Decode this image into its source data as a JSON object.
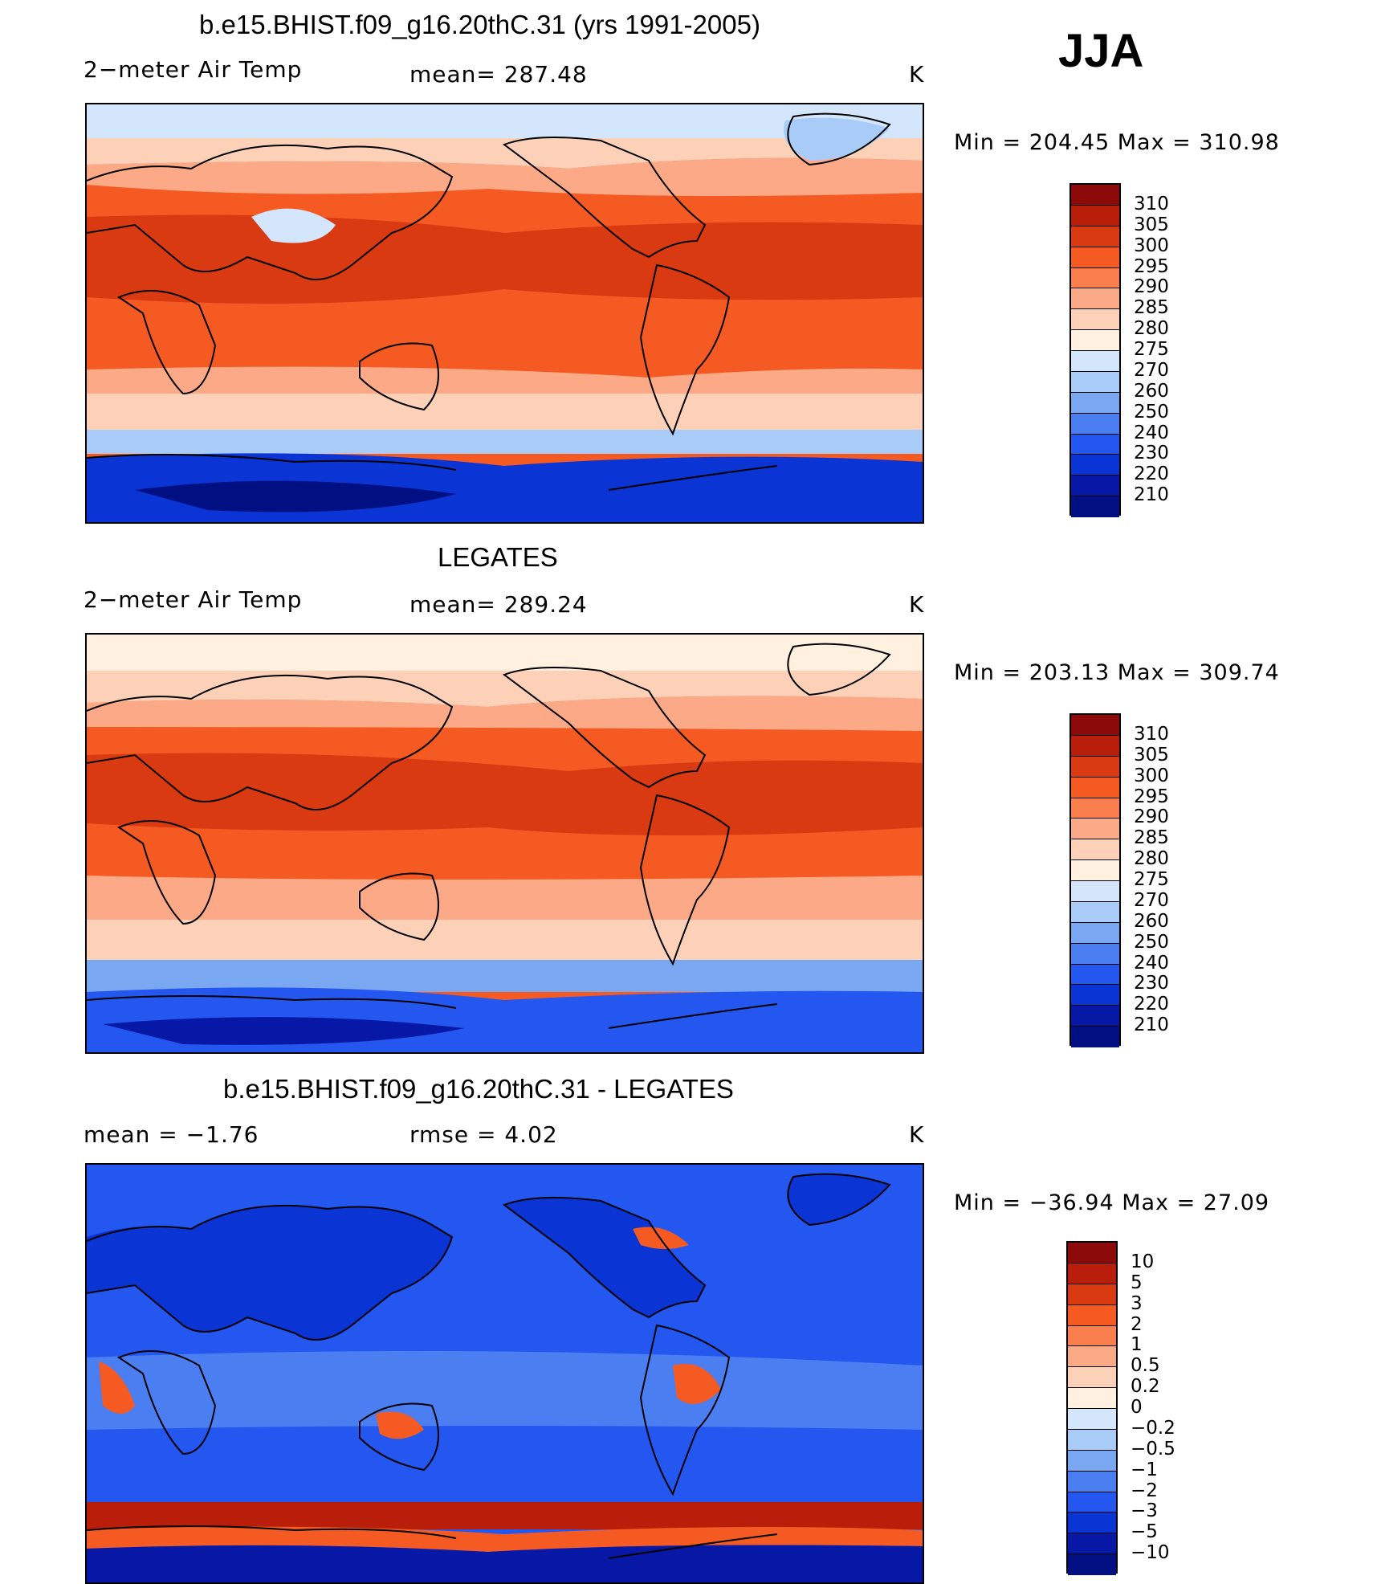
{
  "season": "JJA",
  "panels": [
    {
      "title": "b.e15.BHIST.f09_g16.20thC.31 (yrs 1991-2005)",
      "left_label": "2−meter Air Temp",
      "center_label": "mean= 287.48",
      "units": "K",
      "minmax": "Min  =  204.45  Max  =  310.98",
      "colorbar": {
        "labels": [
          "310",
          "305",
          "300",
          "295",
          "290",
          "285",
          "280",
          "275",
          "270",
          "260",
          "250",
          "240",
          "230",
          "220",
          "210"
        ],
        "colors": [
          "#8c0a0a",
          "#b81e0a",
          "#d93a12",
          "#f45a22",
          "#fb7e4f",
          "#fca987",
          "#fdd1b8",
          "#fff0e0",
          "#d4e6fb",
          "#a8cbf7",
          "#7aa7f2",
          "#4b7ef0",
          "#2457f0",
          "#0b34d4",
          "#0718a6",
          "#001083"
        ]
      },
      "map_colors": {
        "polar_n": "#d4e6fb",
        "high": "#fdd1b8",
        "mid": "#fca987",
        "warm": "#f45a22",
        "hot": "#d93a12",
        "south_mid": "#fdd1b8",
        "south_cold": "#a8cbf7",
        "antarctic": "#0b34d4",
        "antarctic_deep": "#001083"
      }
    },
    {
      "title": "LEGATES",
      "left_label": "2−meter Air Temp",
      "center_label": "mean= 289.24",
      "units": "K",
      "minmax": "Min  =  203.13  Max  =  309.74",
      "colorbar": {
        "labels": [
          "310",
          "305",
          "300",
          "295",
          "290",
          "285",
          "280",
          "275",
          "270",
          "260",
          "250",
          "240",
          "230",
          "220",
          "210"
        ],
        "colors": [
          "#8c0a0a",
          "#b81e0a",
          "#d93a12",
          "#f45a22",
          "#fb7e4f",
          "#fca987",
          "#fdd1b8",
          "#fff0e0",
          "#d4e6fb",
          "#a8cbf7",
          "#7aa7f2",
          "#4b7ef0",
          "#2457f0",
          "#0b34d4",
          "#0718a6",
          "#001083"
        ]
      },
      "map_colors": {
        "polar_n": "#fff0e0",
        "high": "#fdd1b8",
        "mid": "#fca987",
        "warm": "#f45a22",
        "hot": "#d93a12",
        "south_mid": "#fdd1b8",
        "south_cold": "#7aa7f2",
        "antarctic": "#2457f0",
        "antarctic_deep": "#0718a6"
      }
    },
    {
      "title": "b.e15.BHIST.f09_g16.20thC.31 - LEGATES",
      "left_label": "mean  =    −1.76",
      "center_label": "rmse  =     4.02",
      "units": "K",
      "minmax": "Min  =  −36.94  Max  =    27.09",
      "colorbar": {
        "labels": [
          "10",
          "5",
          "3",
          "2",
          "1",
          "0.5",
          "0.2",
          "0",
          "−0.2",
          "−0.5",
          "−1",
          "−2",
          "−3",
          "−5",
          "−10"
        ],
        "colors": [
          "#8c0a0a",
          "#b81e0a",
          "#d93a12",
          "#f45a22",
          "#fb7e4f",
          "#fca987",
          "#fdd1b8",
          "#fff0e0",
          "#d4e6fb",
          "#a8cbf7",
          "#7aa7f2",
          "#4b7ef0",
          "#2457f0",
          "#0b34d4",
          "#0718a6",
          "#001083"
        ]
      },
      "map_colors": {
        "ocean": "#2457f0",
        "ocean_light": "#4b7ef0",
        "land": "#0b34d4",
        "warm_patch": "#f45a22",
        "hot_band": "#b81e0a",
        "cold_band": "#0718a6"
      }
    }
  ]
}
